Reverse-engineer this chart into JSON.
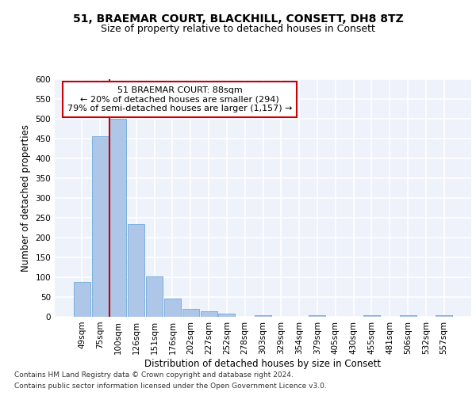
{
  "title1": "51, BRAEMAR COURT, BLACKHILL, CONSETT, DH8 8TZ",
  "title2": "Size of property relative to detached houses in Consett",
  "xlabel": "Distribution of detached houses by size in Consett",
  "ylabel": "Number of detached properties",
  "footnote1": "Contains HM Land Registry data © Crown copyright and database right 2024.",
  "footnote2": "Contains public sector information licensed under the Open Government Licence v3.0.",
  "categories": [
    "49sqm",
    "75sqm",
    "100sqm",
    "126sqm",
    "151sqm",
    "176sqm",
    "202sqm",
    "227sqm",
    "252sqm",
    "278sqm",
    "303sqm",
    "329sqm",
    "354sqm",
    "379sqm",
    "405sqm",
    "430sqm",
    "455sqm",
    "481sqm",
    "506sqm",
    "532sqm",
    "557sqm"
  ],
  "values": [
    88,
    457,
    500,
    235,
    103,
    47,
    20,
    14,
    8,
    0,
    5,
    0,
    0,
    5,
    0,
    0,
    5,
    0,
    5,
    0,
    5
  ],
  "bar_color": "#aec6e8",
  "bar_edge_color": "#5a9fd4",
  "property_label": "51 BRAEMAR COURT: 88sqm",
  "annotation_line1": "← 20% of detached houses are smaller (294)",
  "annotation_line2": "79% of semi-detached houses are larger (1,157) →",
  "vline_x": 1.5,
  "vline_color": "#cc0000",
  "annotation_box_edge_color": "#cc0000",
  "ylim": [
    0,
    600
  ],
  "yticks": [
    0,
    50,
    100,
    150,
    200,
    250,
    300,
    350,
    400,
    450,
    500,
    550,
    600
  ],
  "background_color": "#eef2fb",
  "grid_color": "#ffffff",
  "title1_fontsize": 10,
  "title2_fontsize": 9,
  "axis_label_fontsize": 8.5,
  "tick_fontsize": 7.5,
  "annotation_fontsize": 8,
  "footnote_fontsize": 6.5
}
